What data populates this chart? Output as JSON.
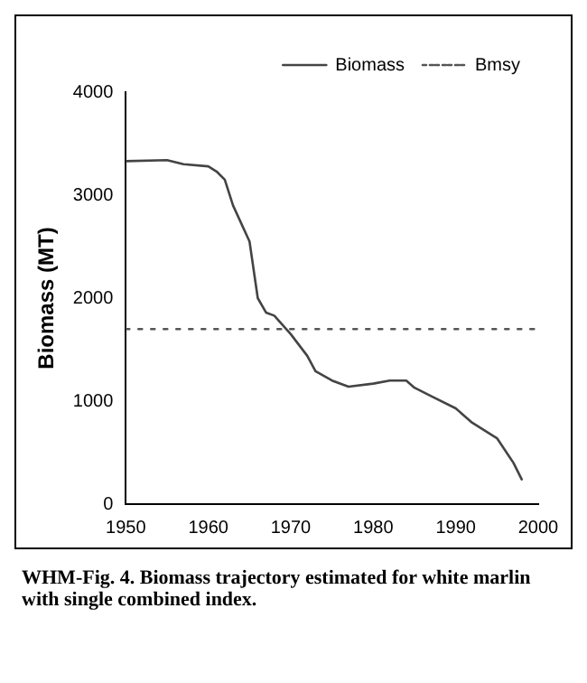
{
  "chart_data": {
    "type": "line",
    "ylabel": "Biomass (MT)",
    "xlim": [
      1950,
      2000
    ],
    "xticks": [
      1950,
      1960,
      1970,
      1980,
      1990,
      2000
    ],
    "ylim": [
      0,
      4000
    ],
    "yticks": [
      0,
      1000,
      2000,
      3000,
      4000
    ],
    "grid": false,
    "legend": "top right",
    "marker": "none",
    "series": [
      {
        "name": "Biomass",
        "color": "#444444",
        "line_style": "solid",
        "x": [
          1950,
          1955,
          1957,
          1960,
          1961,
          1962,
          1963,
          1965,
          1966,
          1967,
          1968,
          1970,
          1972,
          1973,
          1975,
          1977,
          1980,
          1982,
          1984,
          1985,
          1987,
          1990,
          1992,
          1995,
          1997,
          1998
        ],
        "values": [
          3330,
          3340,
          3300,
          3280,
          3230,
          3150,
          2900,
          2550,
          2000,
          1860,
          1830,
          1650,
          1440,
          1290,
          1200,
          1140,
          1170,
          1200,
          1200,
          1130,
          1050,
          930,
          790,
          640,
          400,
          240
        ]
      },
      {
        "name": "Bmsy",
        "color": "#555555",
        "line_style": "dotted",
        "x": [
          1950,
          2000
        ],
        "values": [
          1700,
          1700
        ]
      }
    ],
    "annotations": [
      "WHM-Fig. 4.    Biomass trajectory estimated for white marlin with single combined index."
    ]
  }
}
